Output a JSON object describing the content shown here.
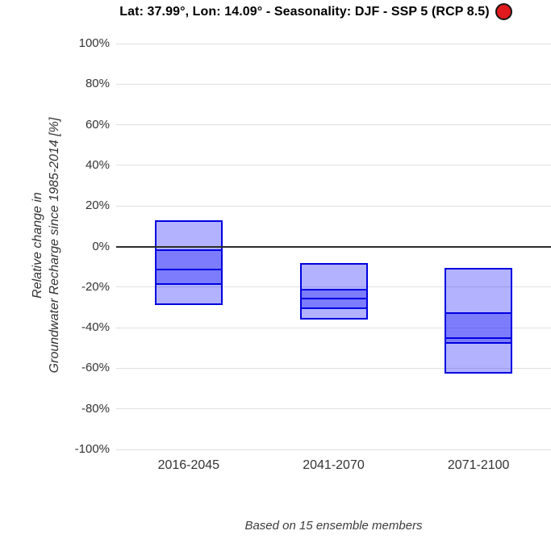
{
  "header": {
    "title": "Lat: 37.99°, Lon: 14.09° - Seasonality: DJF - SSP 5 (RCP 8.5)",
    "indicator": {
      "name": "scenario-indicator",
      "color": "#e11a1d",
      "border_color": "#161616"
    }
  },
  "footer": {
    "caption": "Based on 15 ensemble members"
  },
  "chart_data": {
    "type": "box",
    "title": "Lat: 37.99°, Lon: 14.09° - Seasonality: DJF - SSP 5 (RCP 8.5)",
    "ylabel_line1": "Relative change in",
    "ylabel_line2": "Groundwater Recharge since 1985-2014 [%]",
    "xlabel": "",
    "ylim": [
      -100,
      100
    ],
    "grid": true,
    "legend": false,
    "yticks": [
      {
        "v": 100,
        "label": "100%"
      },
      {
        "v": 80,
        "label": "80%"
      },
      {
        "v": 60,
        "label": "60%"
      },
      {
        "v": 40,
        "label": "40%"
      },
      {
        "v": 20,
        "label": "20%"
      },
      {
        "v": 0,
        "label": "0%"
      },
      {
        "v": -20,
        "label": "-20%"
      },
      {
        "v": -40,
        "label": "-40%"
      },
      {
        "v": -60,
        "label": "-60%"
      },
      {
        "v": -80,
        "label": "-80%"
      },
      {
        "v": -100,
        "label": "-100%"
      }
    ],
    "categories": [
      "2016-2045",
      "2041-2070",
      "2071-2100"
    ],
    "series": [
      {
        "category": "2016-2045",
        "max": 13,
        "p75": -1.5,
        "median": -11.5,
        "p25": -19,
        "min": -29
      },
      {
        "category": "2041-2070",
        "max": -8,
        "p75": -21,
        "median": -25.5,
        "p25": -31,
        "min": -36
      },
      {
        "category": "2071-2100",
        "max": -10.5,
        "p75": -32.5,
        "median": -45,
        "p25": -48,
        "min": -62.5
      }
    ],
    "colors": {
      "range_fill": "rgba(0,0,255,0.30)",
      "iqr_fill": "rgba(50,50,250,0.42)",
      "box_border": "#0000e0",
      "grid": "#e0e0e0",
      "zero_line": "#2d2d2d",
      "axis_text": "#333333"
    },
    "caption": "Based on 15 ensemble members"
  }
}
